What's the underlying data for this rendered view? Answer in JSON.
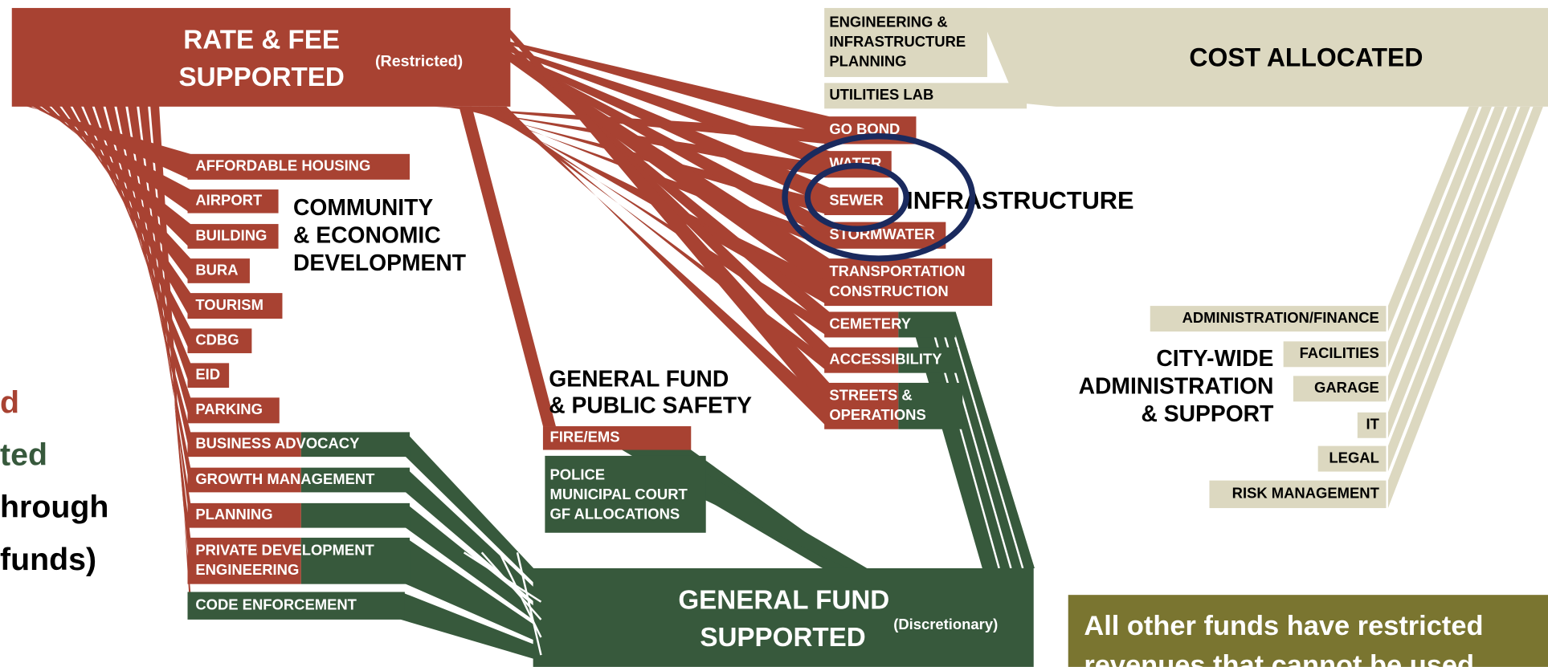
{
  "rate_fee": {
    "title": [
      "RATE & FEE",
      "SUPPORTED"
    ],
    "note": "(Restricted)"
  },
  "cost_allocated": {
    "title": "COST ALLOCATED",
    "items": [
      [
        "ENGINEERING &",
        "INFRASTRUCTURE",
        "PLANNING"
      ],
      [
        "UTILITIES LAB"
      ]
    ]
  },
  "infrastructure": {
    "title": "INFRASTRUCTURE",
    "items": [
      [
        "GO BOND"
      ],
      [
        "WATER"
      ],
      [
        "SEWER"
      ],
      [
        "STORMWATER"
      ],
      [
        "TRANSPORTATION",
        "CONSTRUCTION"
      ],
      [
        "CEMETERY"
      ],
      [
        "ACCESSIBILITY"
      ],
      [
        "STREETS &",
        "OPERATIONS"
      ]
    ]
  },
  "community": {
    "title": [
      "COMMUNITY",
      "& ECONOMIC",
      "DEVELOPMENT"
    ],
    "items": [
      [
        "AFFORDABLE HOUSING"
      ],
      [
        "AIRPORT"
      ],
      [
        "BUILDING"
      ],
      [
        "BURA"
      ],
      [
        "TOURISM"
      ],
      [
        "CDBG"
      ],
      [
        "EID"
      ],
      [
        "PARKING"
      ],
      [
        "BUSINESS ADVOCACY"
      ],
      [
        "GROWTH MANAGEMENT"
      ],
      [
        "PLANNING"
      ],
      [
        "PRIVATE DEVELOPMENT",
        "ENGINEERING"
      ],
      [
        "CODE ENFORCEMENT"
      ]
    ]
  },
  "public_safety": {
    "title": [
      "GENERAL FUND",
      "& PUBLIC SAFETY"
    ],
    "items": [
      [
        "FIRE/EMS"
      ],
      [
        "POLICE",
        "MUNICIPAL COURT",
        "GF ALLOCATIONS"
      ]
    ]
  },
  "general_fund": {
    "title": [
      "GENERAL FUND",
      "SUPPORTED"
    ],
    "note": "(Discretionary)"
  },
  "administration": {
    "title": [
      "CITY-WIDE",
      "ADMINISTRATION",
      "& SUPPORT"
    ],
    "items": [
      [
        "ADMINISTRATION/FINANCE"
      ],
      [
        "FACILITIES"
      ],
      [
        "GARAGE"
      ],
      [
        "IT"
      ],
      [
        "LEGAL"
      ],
      [
        "RISK MANAGEMENT"
      ]
    ]
  },
  "side_text": [
    "d",
    "ted",
    "hrough",
    "funds)"
  ],
  "callout": [
    "All other funds have restricted",
    "revenues that cannot be used"
  ]
}
